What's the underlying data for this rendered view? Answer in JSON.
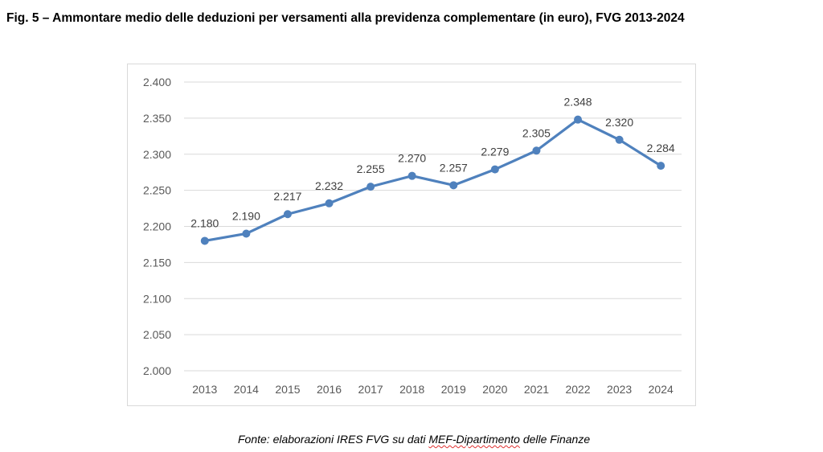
{
  "figure": {
    "title": "Fig. 5 – Ammontare medio delle deduzioni per versamenti alla previdenza complementare (in euro), FVG 2013-2024",
    "source_prefix": "Fonte: elaborazioni IRES FVG su dati ",
    "source_highlight": "MEF-Dipartimento",
    "source_suffix": " delle Finanze"
  },
  "chart_data": {
    "type": "line",
    "title": "",
    "xlabel": "",
    "ylabel": "",
    "categories": [
      "2013",
      "2014",
      "2015",
      "2016",
      "2017",
      "2018",
      "2019",
      "2020",
      "2021",
      "2022",
      "2023",
      "2024"
    ],
    "series": [
      {
        "values": [
          2180,
          2190,
          2217,
          2232,
          2255,
          2270,
          2257,
          2279,
          2305,
          2348,
          2320,
          2284
        ],
        "labels": [
          "2.180",
          "2.190",
          "2.217",
          "2.232",
          "2.255",
          "2.270",
          "2.257",
          "2.279",
          "2.305",
          "2.348",
          "2.320",
          "2.284"
        ],
        "color": "#4f81bd"
      }
    ],
    "ylim": [
      2000,
      2400
    ],
    "yticks": [
      2000,
      2050,
      2100,
      2150,
      2200,
      2250,
      2300,
      2350,
      2400
    ],
    "ytick_labels": [
      "2.000",
      "2.050",
      "2.100",
      "2.150",
      "2.200",
      "2.250",
      "2.300",
      "2.350",
      "2.400"
    ],
    "grid": true,
    "legend": "none",
    "gridline_color": "#d9d9d9"
  }
}
